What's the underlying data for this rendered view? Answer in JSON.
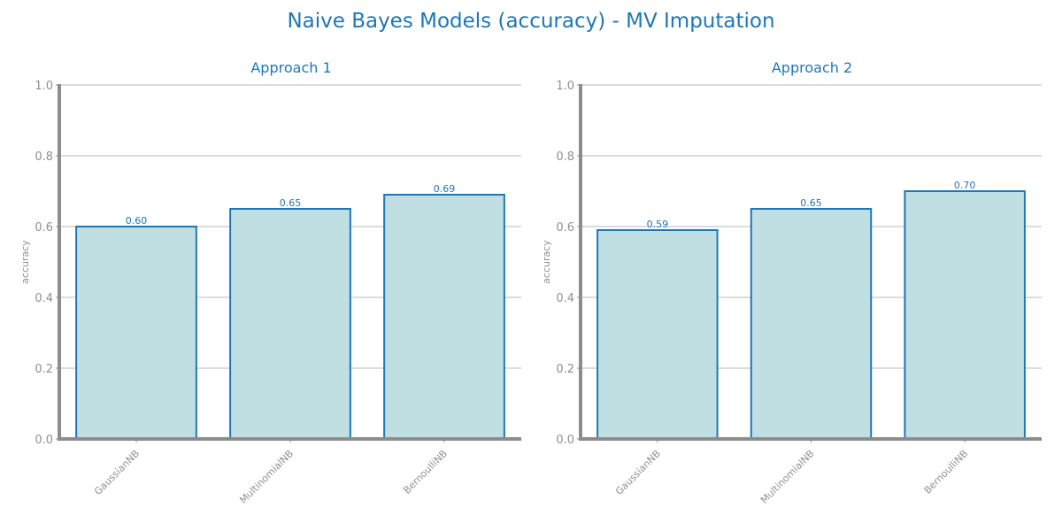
{
  "title": "Naive Bayes Models (accuracy) - MV Imputation",
  "chart_data": [
    {
      "type": "bar",
      "title": "Approach 1",
      "xlabel": "",
      "ylabel": "accuracy",
      "categories": [
        "GaussianNB",
        "MultinomialNB",
        "BernoulliNB"
      ],
      "values": [
        0.6,
        0.65,
        0.69
      ],
      "value_labels": [
        "0.60",
        "0.65",
        "0.69"
      ],
      "ylim": [
        0.0,
        1.0
      ],
      "yticks": [
        "0.0",
        "0.2",
        "0.4",
        "0.6",
        "0.8",
        "1.0"
      ],
      "grid": true
    },
    {
      "type": "bar",
      "title": "Approach 2",
      "xlabel": "",
      "ylabel": "accuracy",
      "categories": [
        "GaussianNB",
        "MultinomialNB",
        "BernoulliNB"
      ],
      "values": [
        0.59,
        0.65,
        0.7
      ],
      "value_labels": [
        "0.59",
        "0.65",
        "0.70"
      ],
      "ylim": [
        0.0,
        1.0
      ],
      "yticks": [
        "0.0",
        "0.2",
        "0.4",
        "0.6",
        "0.8",
        "1.0"
      ],
      "grid": true
    }
  ],
  "colors": {
    "accent": "#1f77b4",
    "bar_fill": "#bfdfe2",
    "axis": "#8c8c8c",
    "grid": "#c8c8c8",
    "tick_text": "#909090"
  }
}
